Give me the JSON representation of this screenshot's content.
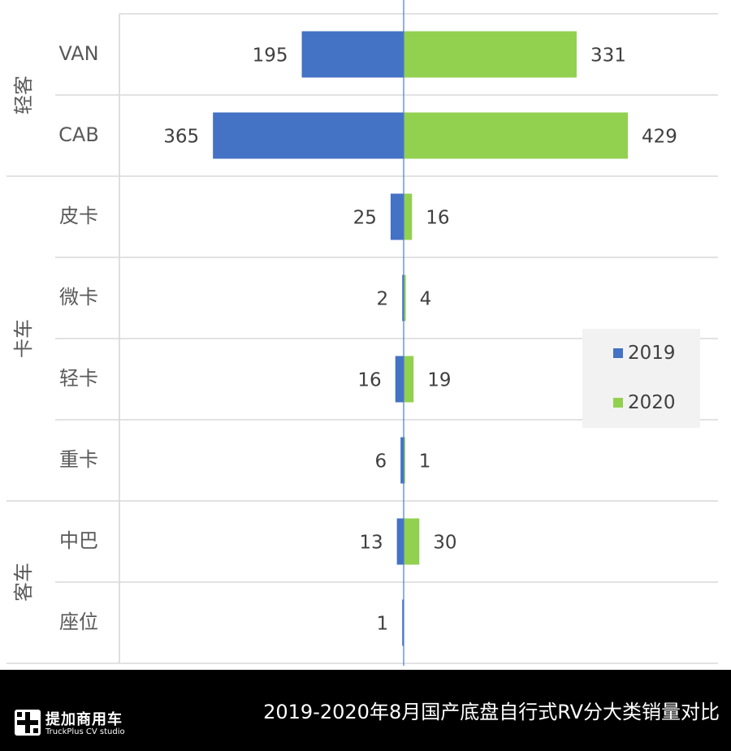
{
  "chart_data": {
    "type": "bar",
    "orientation": "horizontal-diverging",
    "title": "2019-2020年8月国产底盘自行式RV分大类销量对比",
    "groups": [
      {
        "label": "轻客",
        "categories": [
          "VAN",
          "CAB"
        ]
      },
      {
        "label": "卡车",
        "categories": [
          "皮卡",
          "微卡",
          "轻卡",
          "重卡"
        ]
      },
      {
        "label": "客车",
        "categories": [
          "中巴",
          "座位"
        ]
      }
    ],
    "categories": [
      "VAN",
      "CAB",
      "皮卡",
      "微卡",
      "轻卡",
      "重卡",
      "中巴",
      "座位"
    ],
    "series": [
      {
        "name": "2019",
        "color": "#4472c4",
        "direction": "left",
        "values": [
          195,
          365,
          25,
          2,
          16,
          6,
          13,
          1
        ]
      },
      {
        "name": "2020",
        "color": "#92d050",
        "direction": "right",
        "values": [
          331,
          429,
          16,
          4,
          19,
          1,
          30,
          null
        ]
      }
    ],
    "legend": "right",
    "grid": "horizontal"
  },
  "footer": {
    "brand_cn": "提加商用车",
    "brand_en": "TruckPlus CV studio",
    "title": "2019-2020年8月国产底盘自行式RV分大类销量对比"
  }
}
